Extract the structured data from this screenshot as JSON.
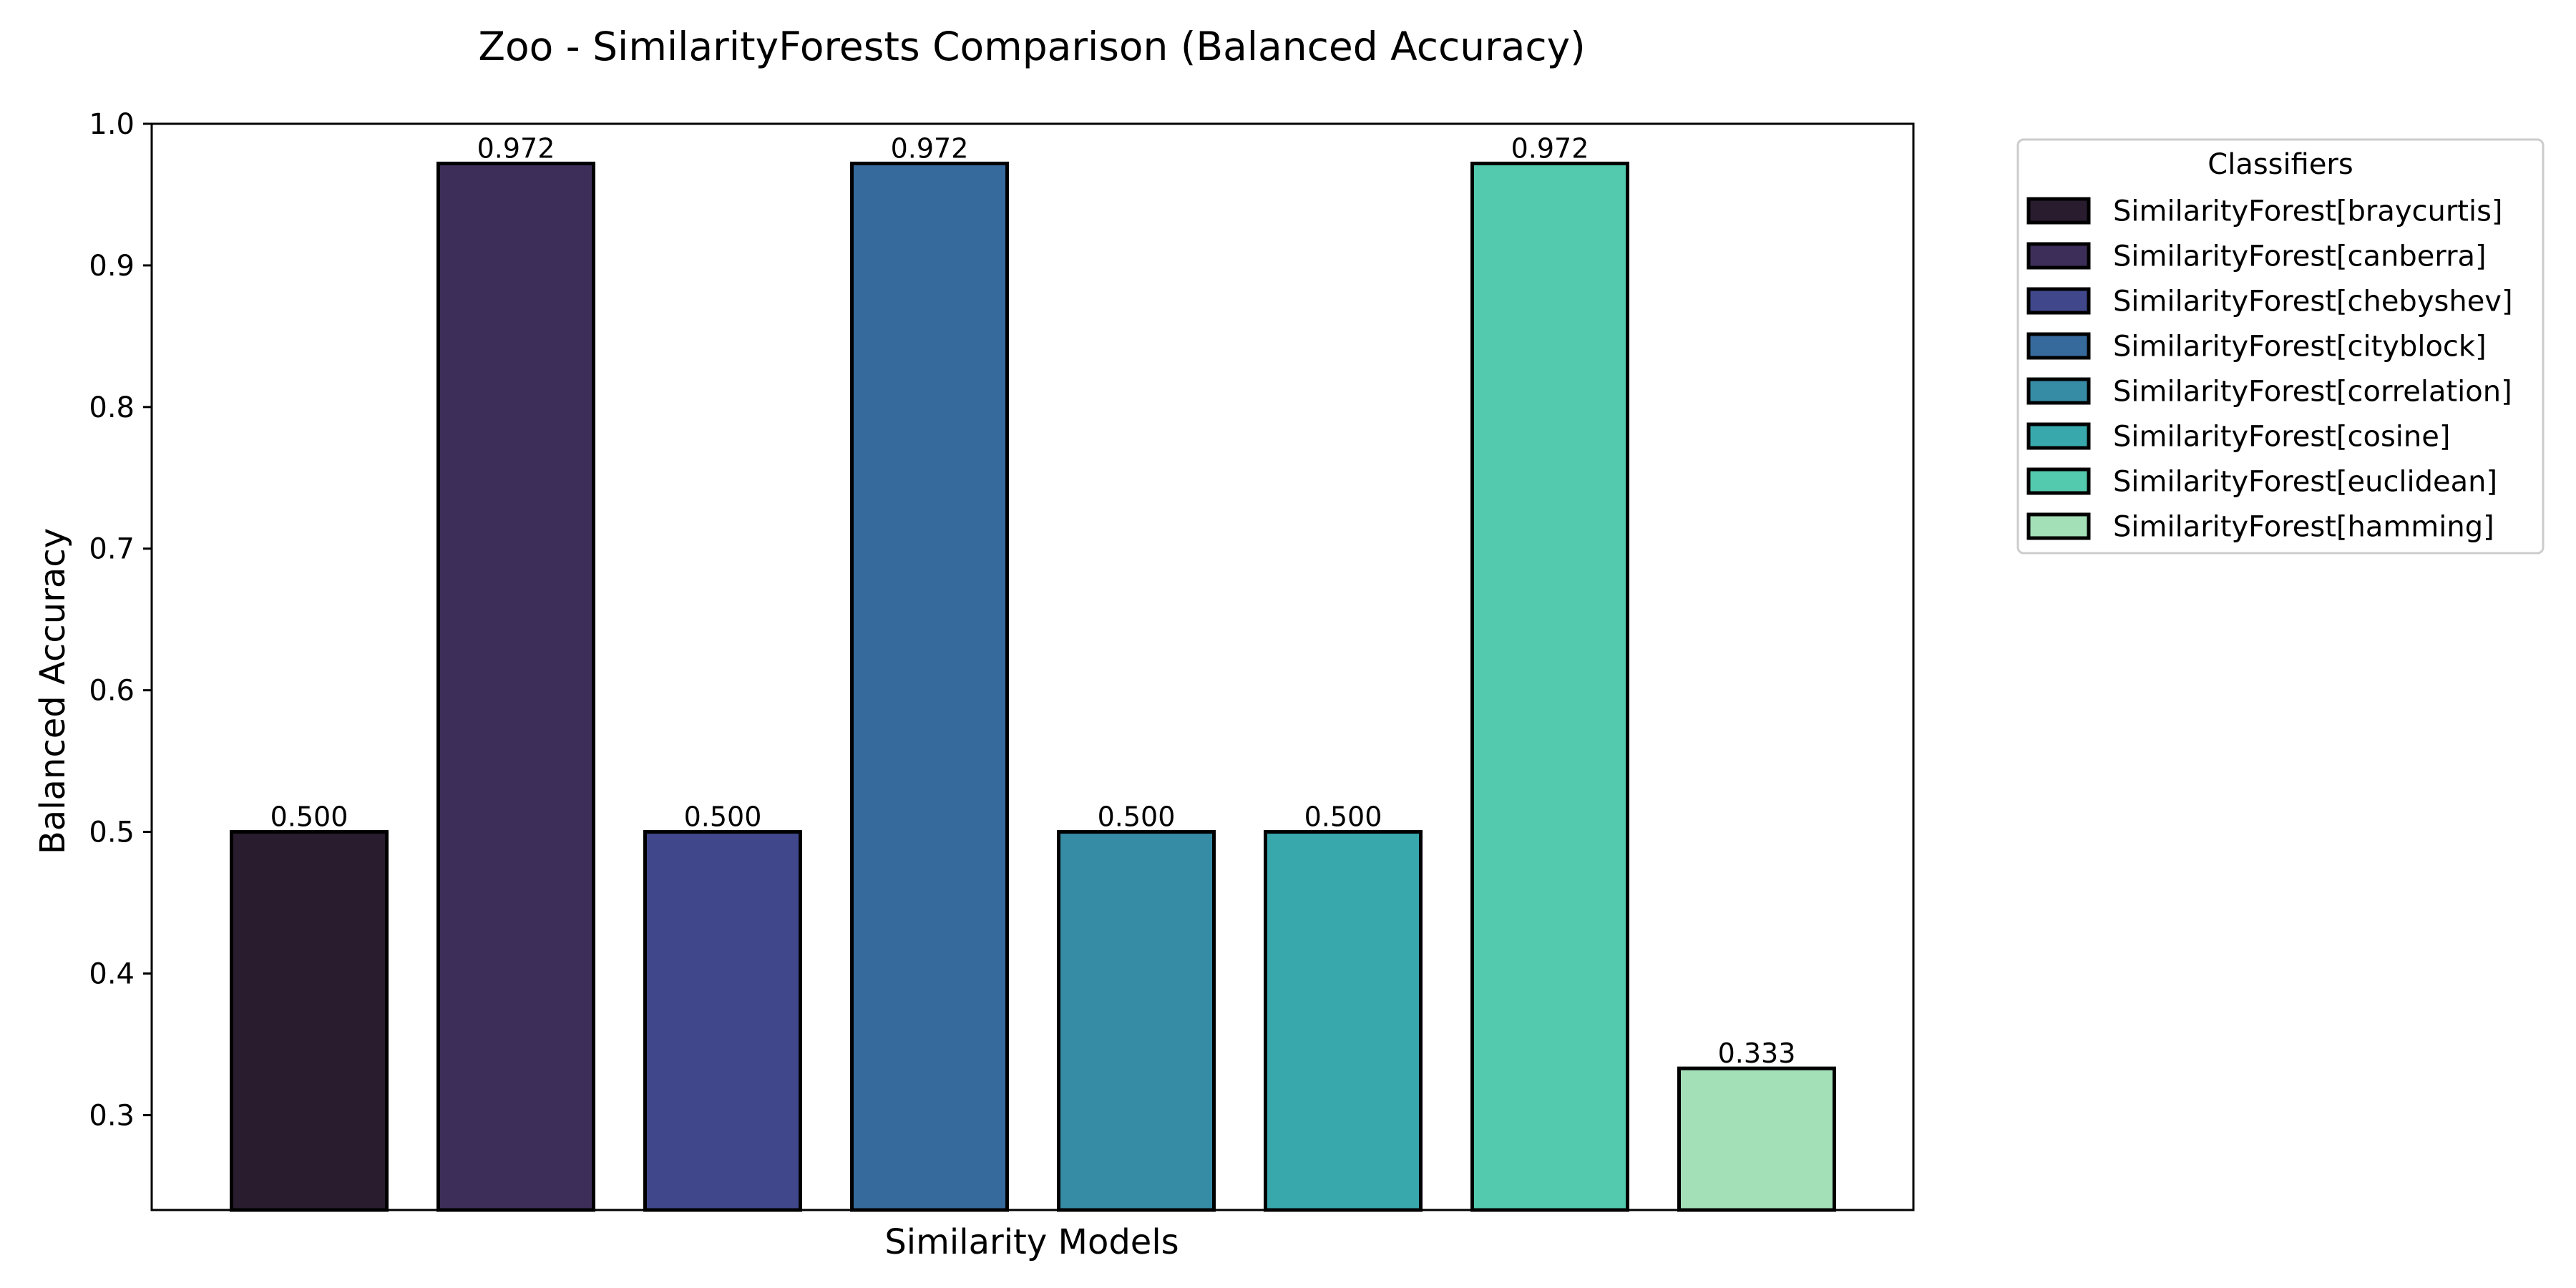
{
  "chart_data": {
    "type": "bar",
    "title": "Zoo - SimilarityForests Comparison (Balanced Accuracy)",
    "xlabel": "Similarity Models",
    "ylabel": "Balanced Accuracy",
    "ylim": [
      0.233,
      1.0
    ],
    "yticks": [
      "0.3",
      "0.4",
      "0.5",
      "0.6",
      "0.7",
      "0.8",
      "0.9",
      "1.0"
    ],
    "ytick_values": [
      0.3,
      0.4,
      0.5,
      0.6,
      0.7,
      0.8,
      0.9,
      1.0
    ],
    "grid": false,
    "legend": {
      "title": "Classifiers",
      "placement": "outside upper right"
    },
    "categories": [
      "SimilarityForest[braycurtis]",
      "SimilarityForest[canberra]",
      "SimilarityForest[chebyshev]",
      "SimilarityForest[cityblock]",
      "SimilarityForest[correlation]",
      "SimilarityForest[cosine]",
      "SimilarityForest[euclidean]",
      "SimilarityForest[hamming]"
    ],
    "values": [
      0.5,
      0.972,
      0.5,
      0.972,
      0.5,
      0.5,
      0.972,
      0.333
    ],
    "value_labels": [
      "0.500",
      "0.972",
      "0.500",
      "0.972",
      "0.500",
      "0.500",
      "0.972",
      "0.333"
    ],
    "colors": [
      "#291c2e",
      "#3c2e59",
      "#40488b",
      "#376a9c",
      "#358ca4",
      "#38a8ac",
      "#53c9ad",
      "#a3dfb7"
    ],
    "edge_color": "#000000"
  }
}
